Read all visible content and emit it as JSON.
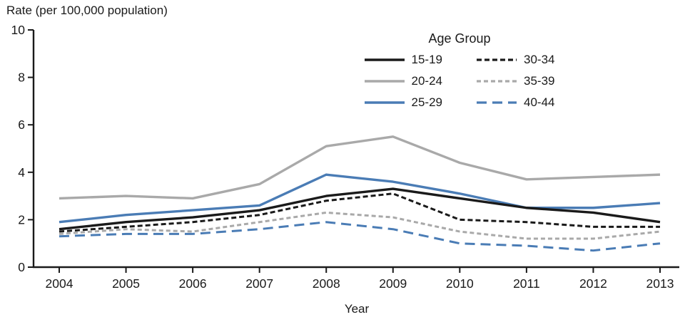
{
  "chart": {
    "title": "Rate (per 100,000 population)",
    "xlabel": "Year",
    "legend_title": "Age Group"
  },
  "chart_data": {
    "type": "line",
    "title": "Rate (per 100,000 population)",
    "xlabel": "Year",
    "ylabel": "Rate (per 100,000 population)",
    "legend_title": "Age Group",
    "legend_position": "top-center",
    "grid": false,
    "ylim": [
      0,
      10
    ],
    "yticks": [
      0,
      2,
      4,
      6,
      8,
      10
    ],
    "x": [
      2004,
      2005,
      2006,
      2007,
      2008,
      2009,
      2010,
      2011,
      2012,
      2013
    ],
    "colors": {
      "black": "#1a1a1a",
      "gray": "#a9a9a9",
      "blue": "#4a7cb5",
      "axis": "#1a1a1a"
    },
    "series": [
      {
        "name": "15-19",
        "color": "#1a1a1a",
        "style": "solid",
        "dash": "",
        "values": [
          1.6,
          1.9,
          2.1,
          2.4,
          3.0,
          3.3,
          2.9,
          2.5,
          2.3,
          1.9
        ]
      },
      {
        "name": "20-24",
        "color": "#a9a9a9",
        "style": "solid",
        "dash": "",
        "values": [
          2.9,
          3.0,
          2.9,
          3.5,
          5.1,
          5.5,
          4.4,
          3.7,
          3.8,
          3.9
        ]
      },
      {
        "name": "25-29",
        "color": "#4a7cb5",
        "style": "solid",
        "dash": "",
        "values": [
          1.9,
          2.2,
          2.4,
          2.6,
          3.9,
          3.6,
          3.1,
          2.5,
          2.5,
          2.7
        ]
      },
      {
        "name": "30-34",
        "color": "#1a1a1a",
        "style": "dashed",
        "dash": "7 4",
        "values": [
          1.5,
          1.7,
          1.9,
          2.2,
          2.8,
          3.1,
          2.0,
          1.9,
          1.7,
          1.7
        ]
      },
      {
        "name": "35-39",
        "color": "#a9a9a9",
        "style": "dashed",
        "dash": "6 4",
        "values": [
          1.4,
          1.6,
          1.5,
          1.9,
          2.3,
          2.1,
          1.5,
          1.2,
          1.2,
          1.5
        ]
      },
      {
        "name": "40-44",
        "color": "#4a7cb5",
        "style": "long-dashed",
        "dash": "14 8",
        "values": [
          1.3,
          1.4,
          1.4,
          1.6,
          1.9,
          1.6,
          1.0,
          0.9,
          0.7,
          1.0
        ]
      }
    ]
  }
}
